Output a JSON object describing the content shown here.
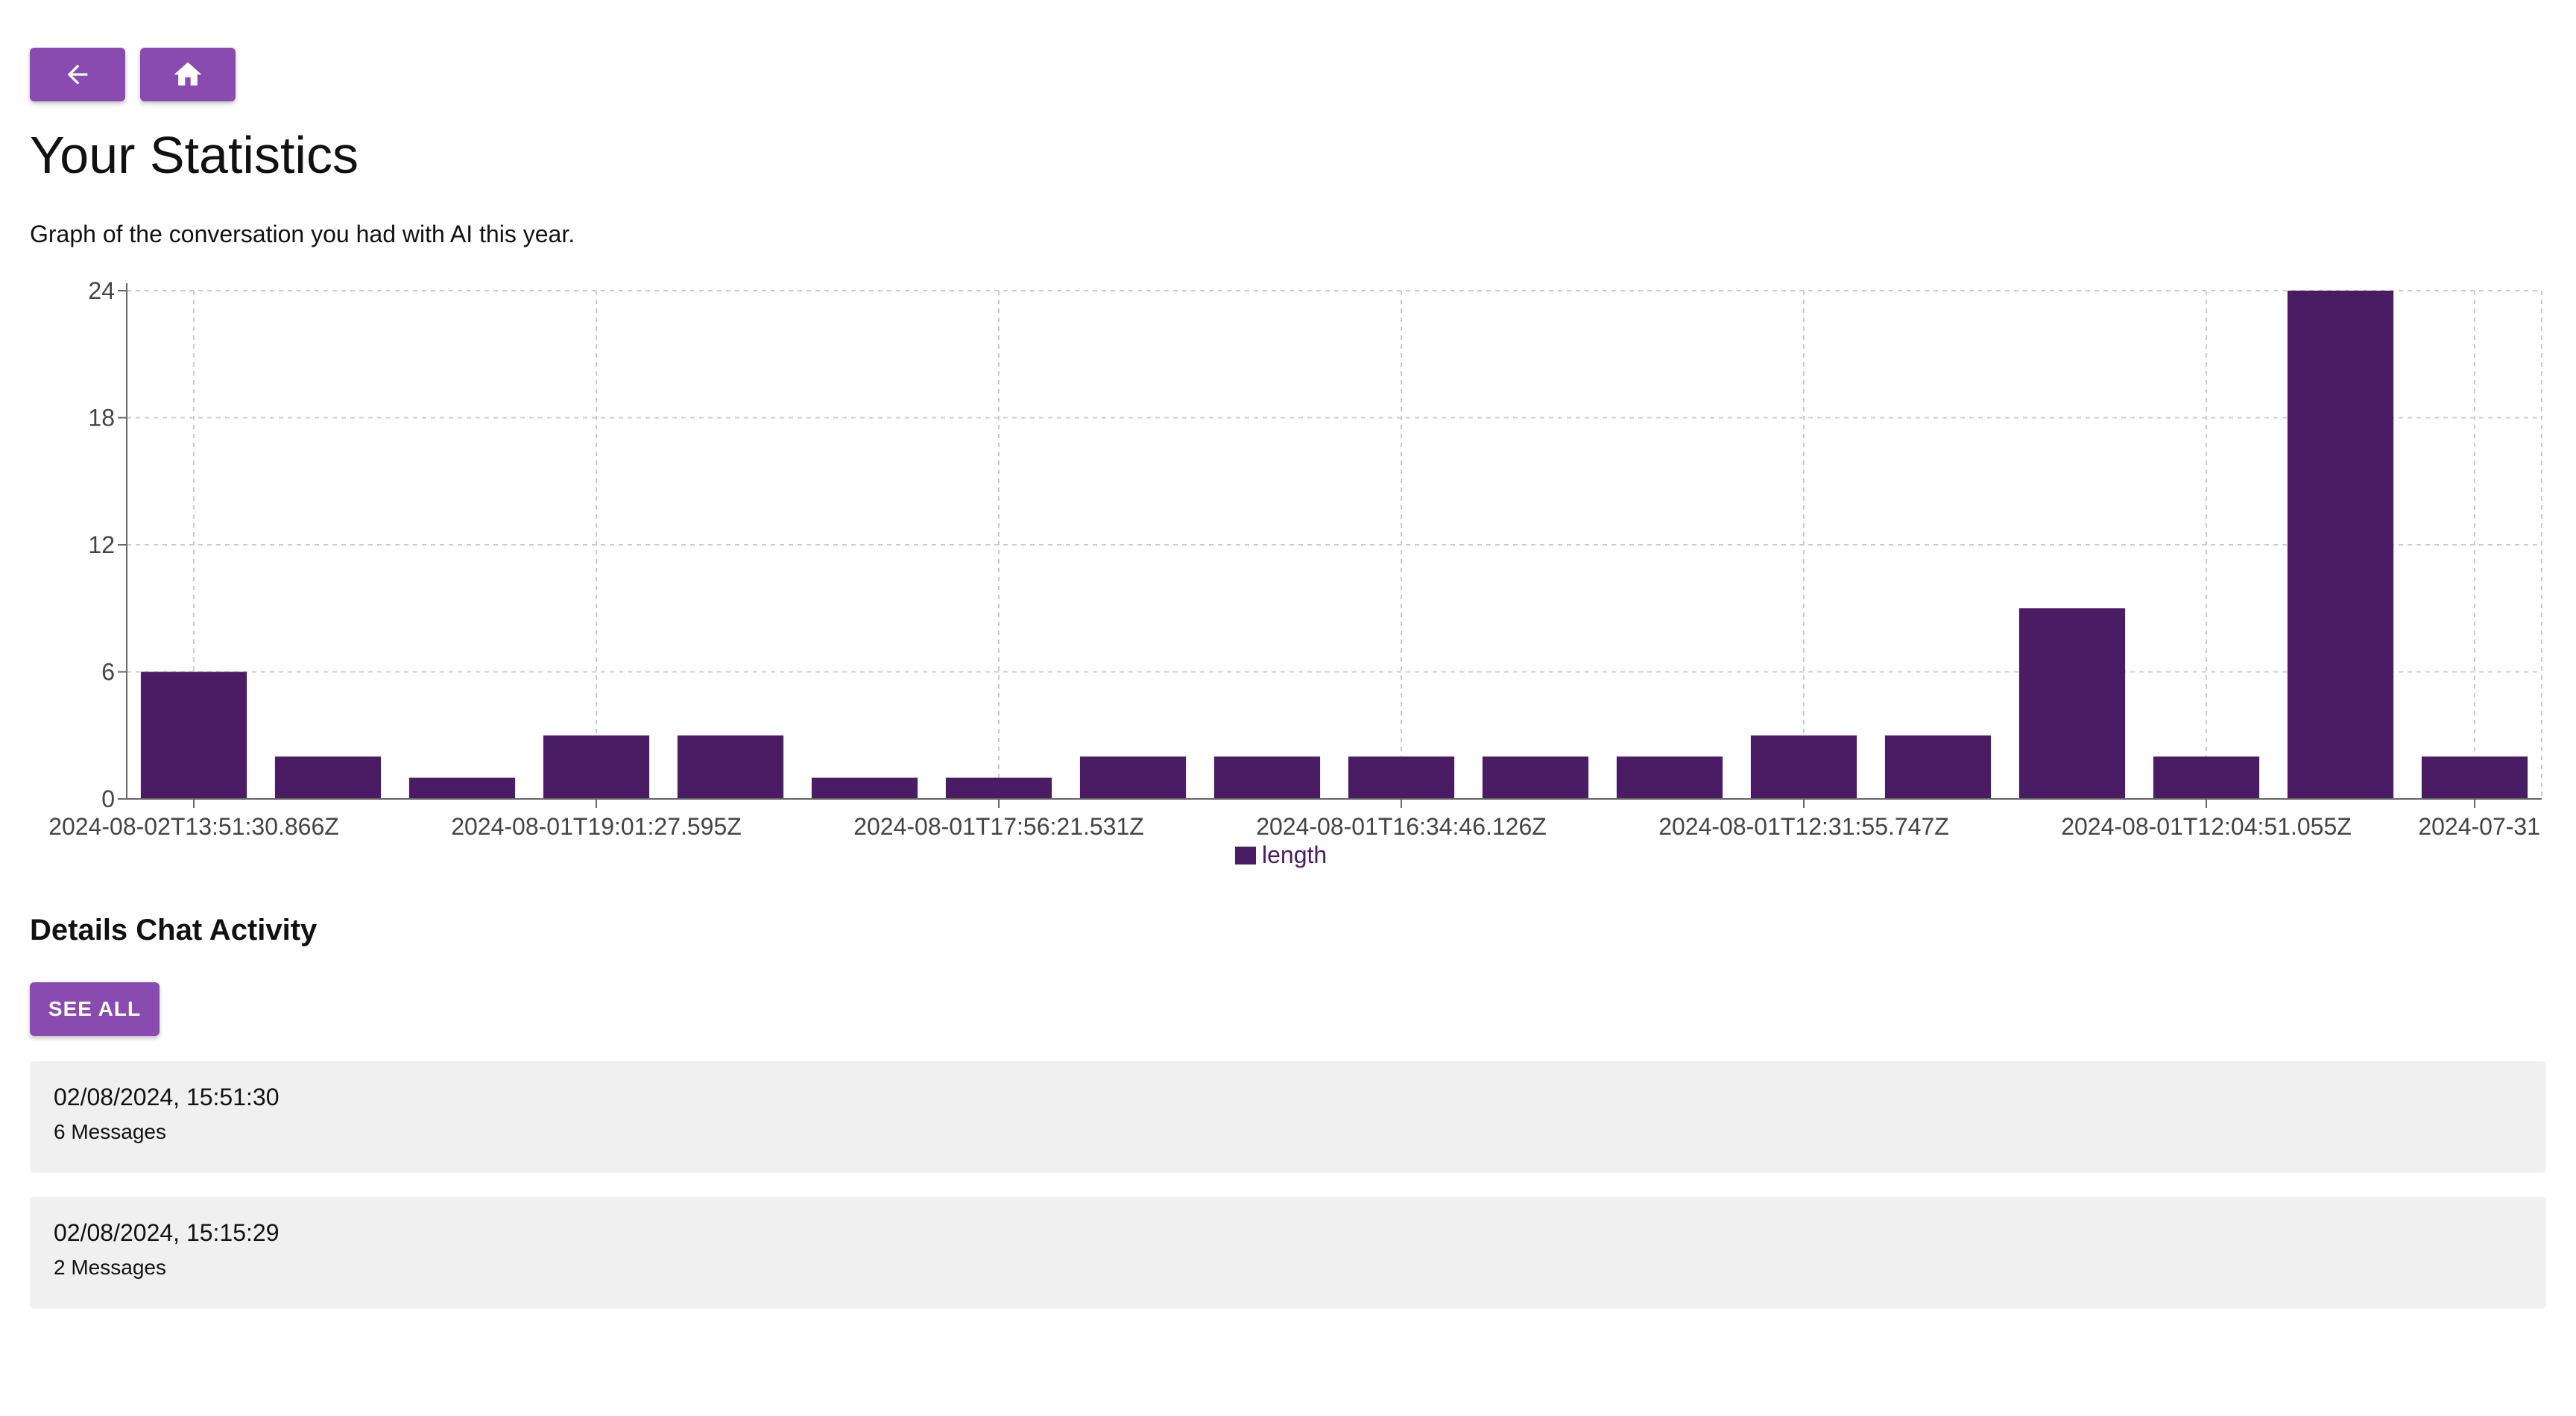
{
  "header": {
    "back_icon": "arrow-left-icon",
    "home_icon": "home-icon",
    "title": "Your Statistics",
    "subtitle": "Graph of the conversation you had with AI this year."
  },
  "colors": {
    "accent": "#8a4bb0",
    "bar": "#4a1c63",
    "grid": "#cccccc",
    "card_bg": "#f0f0f0"
  },
  "chart_data": {
    "type": "bar",
    "categories": [
      "2024-08-02T13:51:30.866Z",
      "",
      "",
      "2024-08-01T19:01:27.595Z",
      "",
      "",
      "2024-08-01T17:56:21.531Z",
      "",
      "",
      "2024-08-01T16:34:46.126Z",
      "",
      "",
      "2024-08-01T12:31:55.747Z",
      "",
      "",
      "2024-08-01T12:04:51.055Z",
      "",
      "2024-07-31"
    ],
    "series": [
      {
        "name": "length",
        "values": [
          6,
          2,
          1,
          3,
          3,
          1,
          1,
          2,
          2,
          2,
          2,
          2,
          3,
          3,
          9,
          2,
          24,
          2
        ]
      }
    ],
    "yticks": [
      0,
      6,
      12,
      18,
      24
    ],
    "ylim": [
      0,
      24
    ],
    "grid": true,
    "legend": "bottom-center"
  },
  "activity": {
    "title": "Details Chat Activity",
    "see_all_label": "SEE ALL",
    "items": [
      {
        "date": "02/08/2024, 15:51:30",
        "count": "6 Messages"
      },
      {
        "date": "02/08/2024, 15:15:29",
        "count": "2 Messages"
      }
    ]
  }
}
